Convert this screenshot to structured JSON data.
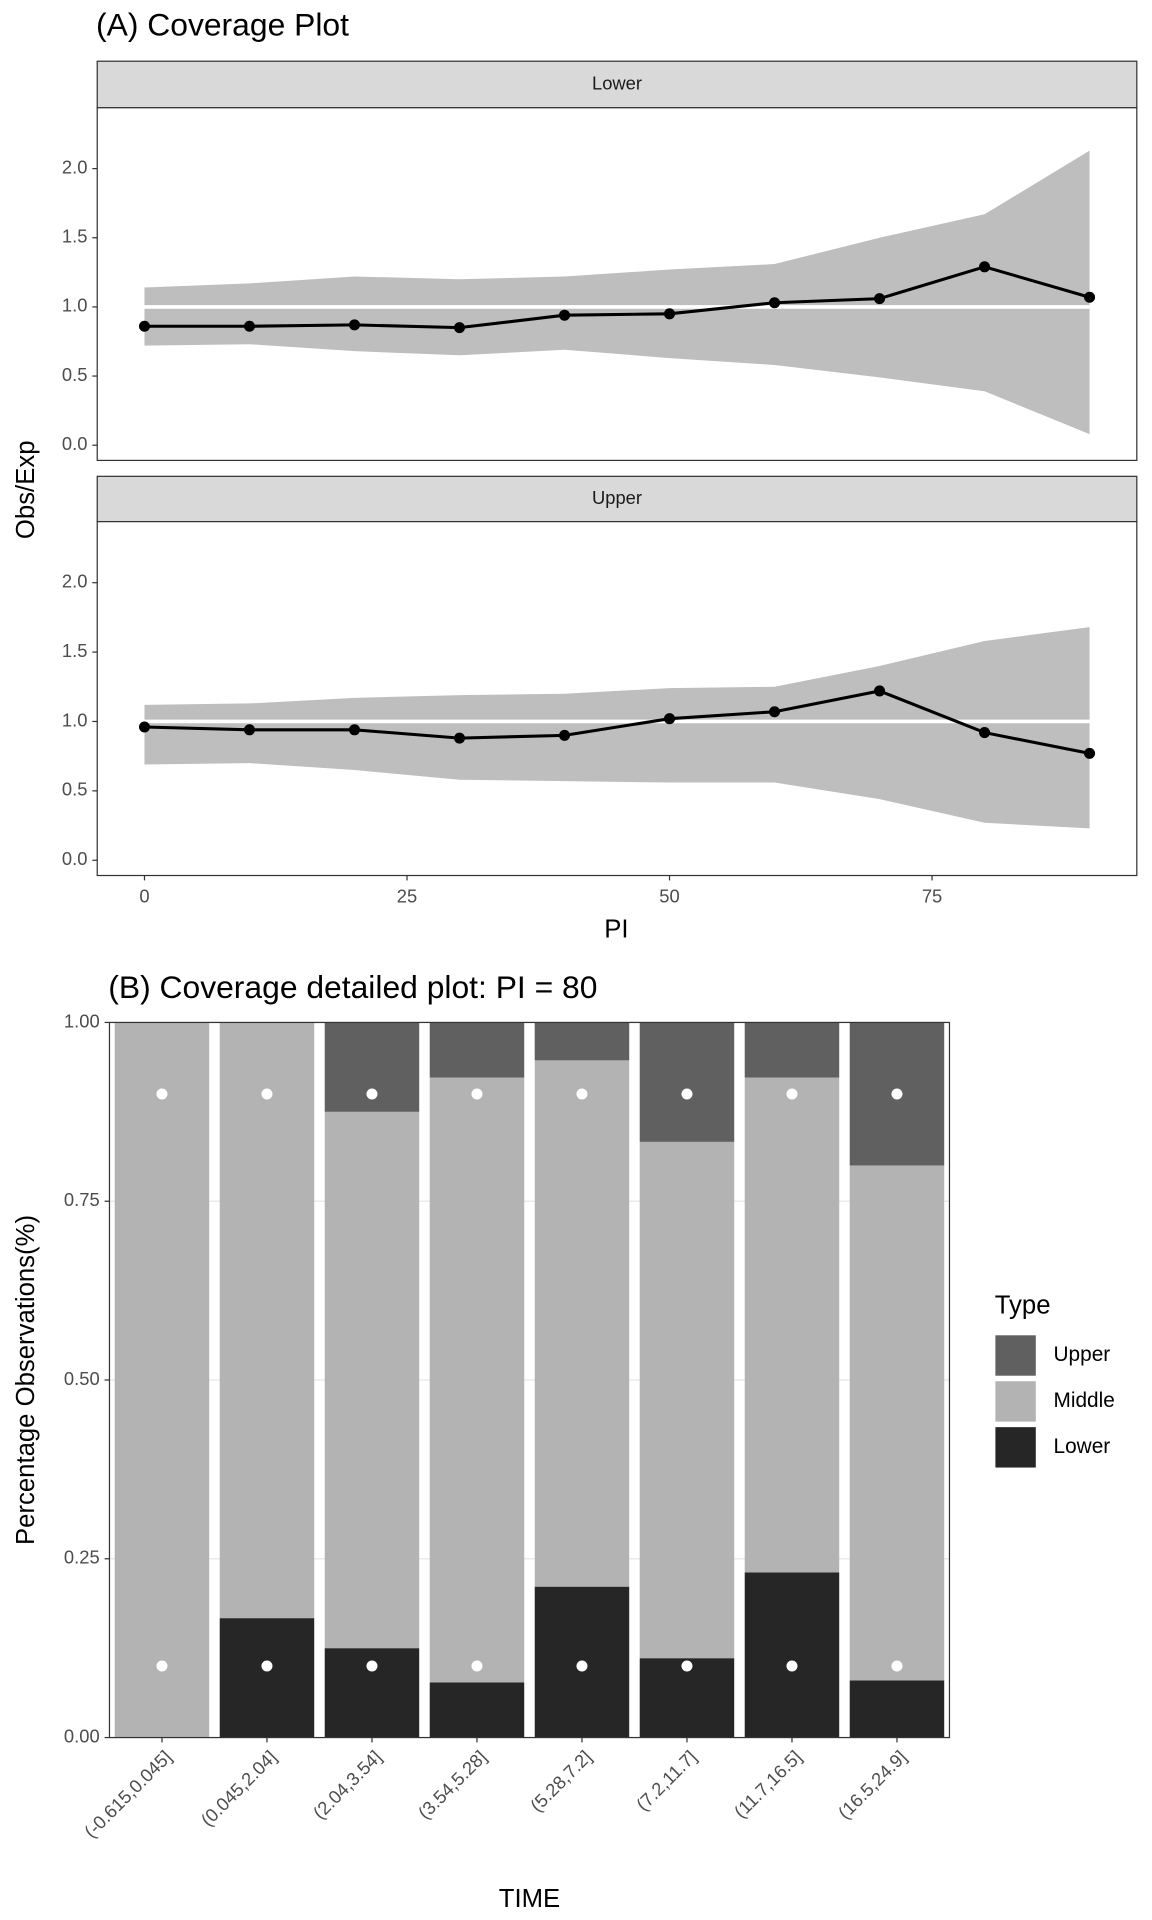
{
  "chart_data": [
    {
      "type": "line",
      "title": "(A) Coverage Plot",
      "xlabel": "PI",
      "ylabel": "Obs/Exp",
      "x": [
        0,
        10,
        20,
        30,
        40,
        50,
        60,
        70,
        80,
        90
      ],
      "xlim": [
        -4.5,
        94.5
      ],
      "xticks": [
        0,
        25,
        50,
        75
      ],
      "ylim": [
        -0.11,
        2.44
      ],
      "yticks": [
        {
          "value": 0,
          "label": "0.0"
        },
        0.5,
        {
          "value": 1,
          "label": "1.0"
        },
        1.5,
        {
          "value": 2,
          "label": "2.0"
        }
      ],
      "reference": 1,
      "color": "#000000",
      "band_color": "#bebebe",
      "grid": false,
      "panels": [
        {
          "name": "Lower",
          "values": [
            0.86,
            0.86,
            0.87,
            0.85,
            0.94,
            0.95,
            1.03,
            1.06,
            1.29,
            1.07
          ],
          "band_lower": [
            0.72,
            0.73,
            0.68,
            0.65,
            0.69,
            0.63,
            0.58,
            0.49,
            0.39,
            0.08
          ],
          "band_upper": [
            1.14,
            1.17,
            1.22,
            1.2,
            1.22,
            1.27,
            1.31,
            1.5,
            1.67,
            2.13
          ]
        },
        {
          "name": "Upper",
          "values": [
            0.96,
            0.94,
            0.94,
            0.88,
            0.9,
            1.02,
            1.07,
            1.22,
            0.92,
            0.77
          ],
          "band_lower": [
            0.69,
            0.7,
            0.65,
            0.58,
            0.57,
            0.56,
            0.56,
            0.44,
            0.27,
            0.23
          ],
          "band_upper": [
            1.12,
            1.13,
            1.17,
            1.19,
            1.2,
            1.24,
            1.25,
            1.4,
            1.58,
            1.68
          ]
        }
      ]
    },
    {
      "type": "bar",
      "stacked": true,
      "title": "(B) Coverage detailed plot: PI = 80",
      "xlabel": "TIME",
      "ylabel": "Percentage Observations(%)",
      "categories": [
        "(-0.615,0.045]",
        "(0.045,2.04]",
        "(2.04,3.54]",
        "(3.54,5.28]",
        "(5.28,7.2]",
        "(7.2,11.7]",
        "(11.7,16.5]",
        "(16.5,24.9]"
      ],
      "series": [
        {
          "name": "Lower",
          "color": "#262626",
          "values": [
            0,
            0.167,
            0.125,
            0.077,
            0.211,
            0.111,
            0.231,
            0.08
          ]
        },
        {
          "name": "Middle",
          "color": "#b3b3b3",
          "values": [
            1,
            0.833,
            0.75,
            0.846,
            0.736,
            0.722,
            0.692,
            0.72
          ]
        },
        {
          "name": "Upper",
          "color": "#606060",
          "values": [
            0,
            0,
            0.125,
            0.077,
            0.053,
            0.167,
            0.077,
            0.2
          ]
        }
      ],
      "expected": [
        0.1,
        0.9
      ],
      "ylim": [
        0,
        1
      ],
      "yticks": [
        {
          "value": 0,
          "label": "0.00"
        },
        0.25,
        {
          "value": 0.5,
          "label": "0.50"
        },
        0.75,
        {
          "value": 1,
          "label": "1.00"
        }
      ],
      "grid": true,
      "legend_title": "Type",
      "legend": "right"
    }
  ]
}
